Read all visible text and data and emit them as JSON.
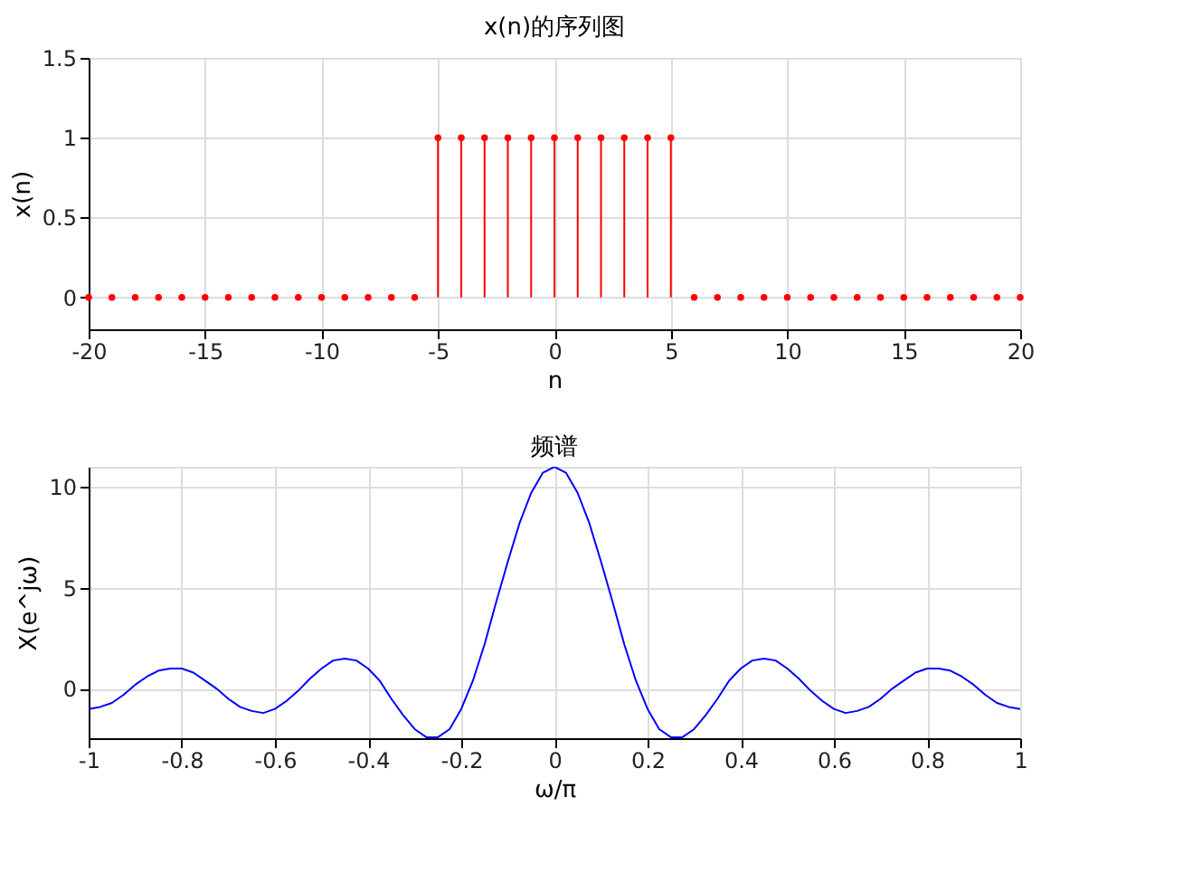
{
  "chart_data": [
    {
      "type": "lollipop",
      "title": "x(n)的序列图",
      "xlabel": "n",
      "ylabel": "x(n)",
      "x": [
        -20,
        -19,
        -18,
        -17,
        -16,
        -15,
        -14,
        -13,
        -12,
        -11,
        -10,
        -9,
        -8,
        -7,
        -6,
        -5,
        -4,
        -3,
        -2,
        -1,
        0,
        1,
        2,
        3,
        4,
        5,
        6,
        7,
        8,
        9,
        10,
        11,
        12,
        13,
        14,
        15,
        16,
        17,
        18,
        19,
        20
      ],
      "series": [
        {
          "color": "#ff0000",
          "values": [
            0,
            0,
            0,
            0,
            0,
            0,
            0,
            0,
            0,
            0,
            0,
            0,
            0,
            0,
            0,
            1,
            1,
            1,
            1,
            1,
            1,
            1,
            1,
            1,
            1,
            1,
            0,
            0,
            0,
            0,
            0,
            0,
            0,
            0,
            0,
            0,
            0,
            0,
            0,
            0,
            0
          ]
        }
      ],
      "xlim": [
        -20,
        20
      ],
      "xticks": [
        -20,
        -15,
        -10,
        -5,
        0,
        5,
        10,
        15,
        20
      ],
      "ylim": [
        -0.2,
        1.5
      ],
      "yticks": [
        0,
        0.5,
        1,
        1.5
      ],
      "grid": true,
      "marker": "circle"
    },
    {
      "type": "line",
      "title": "频谱",
      "xlabel": "ω/π",
      "ylabel": "X(e^jω)",
      "x": [
        -1,
        -0.975,
        -0.95,
        -0.925,
        -0.9,
        -0.875,
        -0.85,
        -0.825,
        -0.8,
        -0.775,
        -0.75,
        -0.725,
        -0.7,
        -0.675,
        -0.65,
        -0.625,
        -0.6,
        -0.575,
        -0.55,
        -0.525,
        -0.5,
        -0.475,
        -0.45,
        -0.425,
        -0.4,
        -0.375,
        -0.35,
        -0.325,
        -0.3,
        -0.275,
        -0.25,
        -0.225,
        -0.2,
        -0.175,
        -0.15,
        -0.125,
        -0.1,
        -0.075,
        -0.05,
        -0.025,
        0,
        0.025,
        0.05,
        0.075,
        0.1,
        0.125,
        0.15,
        0.175,
        0.2,
        0.225,
        0.25,
        0.275,
        0.3,
        0.325,
        0.35,
        0.375,
        0.4,
        0.425,
        0.45,
        0.475,
        0.5,
        0.525,
        0.55,
        0.575,
        0.6,
        0.625,
        0.65,
        0.675,
        0.7,
        0.725,
        0.75,
        0.775,
        0.8,
        0.825,
        0.85,
        0.875,
        0.9,
        0.925,
        0.95,
        0.975,
        1
      ],
      "series": [
        {
          "color": "#0000ff",
          "values": [
            -1,
            -0.9,
            -0.7,
            -0.3,
            0.2,
            0.6,
            0.9,
            1,
            1,
            0.8,
            0.4,
            0,
            -0.5,
            -0.9,
            -1.1,
            -1.2,
            -1,
            -0.6,
            -0.1,
            0.5,
            1,
            1.4,
            1.5,
            1.4,
            1,
            0.4,
            -0.5,
            -1.3,
            -2,
            -2.4,
            -2.4,
            -2,
            -1,
            0.4,
            2.2,
            4.3,
            6.3,
            8.2,
            9.7,
            10.7,
            11,
            10.7,
            9.7,
            8.2,
            6.3,
            4.3,
            2.2,
            0.4,
            -1,
            -2,
            -2.4,
            -2.4,
            -2,
            -1.3,
            -0.5,
            0.4,
            1,
            1.4,
            1.5,
            1.4,
            1,
            0.5,
            -0.1,
            -0.6,
            -1,
            -1.2,
            -1.1,
            -0.9,
            -0.5,
            0,
            0.4,
            0.8,
            1,
            1,
            0.9,
            0.6,
            0.2,
            -0.3,
            -0.7,
            -0.9,
            -1
          ]
        }
      ],
      "xlim": [
        -1,
        1
      ],
      "xticks": [
        -1,
        -0.8,
        -0.6,
        -0.4,
        -0.2,
        0,
        0.2,
        0.4,
        0.6,
        0.8,
        1
      ],
      "ylim": [
        -2.45,
        11
      ],
      "yticks": [
        0,
        5,
        10
      ],
      "grid": true,
      "marker": "none"
    }
  ]
}
